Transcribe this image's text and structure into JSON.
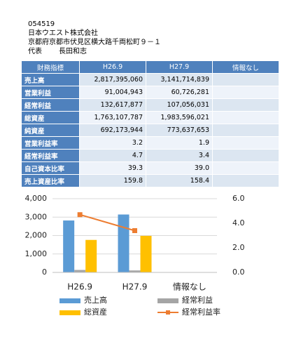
{
  "header": {
    "code": "054519",
    "company": "日本ウエスト株式会社",
    "address": "京都府京都市伏見区横大路千両松町９－１",
    "rep_label": "代表",
    "rep_name": "長田和志"
  },
  "table": {
    "columns": [
      "財務指標",
      "H26.9",
      "H27.9",
      "情報なし"
    ],
    "rows": [
      [
        "売上高",
        "2,817,395,060",
        "3,141,714,839",
        ""
      ],
      [
        "営業利益",
        "91,004,943",
        "60,726,281",
        ""
      ],
      [
        "経常利益",
        "132,617,877",
        "107,056,031",
        ""
      ],
      [
        "総資産",
        "1,763,107,787",
        "1,983,596,021",
        ""
      ],
      [
        "純資産",
        "692,173,944",
        "773,637,653",
        ""
      ],
      [
        "営業利益率",
        "3.2",
        "1.9",
        ""
      ],
      [
        "経常利益率",
        "4.7",
        "3.4",
        ""
      ],
      [
        "自己資本比率",
        "39.3",
        "39.0",
        ""
      ],
      [
        "売上資産比率",
        "159.8",
        "158.4",
        ""
      ]
    ]
  },
  "chart_data": {
    "type": "bar",
    "categories": [
      "H26.9",
      "H27.9",
      "情報なし"
    ],
    "series": [
      {
        "name": "売上高",
        "color": "#5b9bd5",
        "values": [
          2817,
          3142,
          null
        ]
      },
      {
        "name": "経常利益",
        "color": "#a5a5a5",
        "values": [
          133,
          107,
          null
        ]
      },
      {
        "name": "総資産",
        "color": "#ffc000",
        "values": [
          1763,
          1984,
          null
        ]
      },
      {
        "name": "経常利益率",
        "color": "#ed7d31",
        "type": "line",
        "axis": "y2",
        "values": [
          4.7,
          3.4,
          null
        ]
      }
    ],
    "ylim": [
      0,
      4000
    ],
    "yticks": [
      0,
      {
        "value": 1000,
        "label": "1,000"
      },
      {
        "value": 2000,
        "label": "2,000"
      },
      {
        "value": 3000,
        "label": "3,000"
      },
      {
        "value": 4000,
        "label": "4,000"
      }
    ],
    "y2lim": [
      0,
      6
    ],
    "y2ticks": [
      {
        "value": 0,
        "label": "0.0"
      },
      {
        "value": 2,
        "label": "2.0"
      },
      {
        "value": 4,
        "label": "4.0"
      },
      {
        "value": 6,
        "label": "6.0"
      }
    ],
    "grid": true,
    "legend": "bottom"
  }
}
